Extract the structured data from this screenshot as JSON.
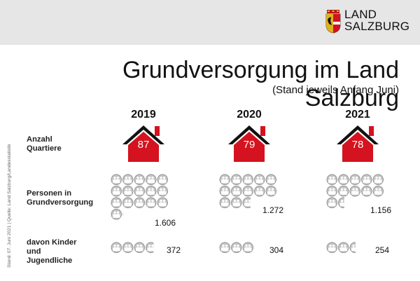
{
  "header": {
    "logo_line1": "LAND",
    "logo_line2": "SALZBURG",
    "title": "Grundversorgung im Land Salzburg",
    "subtitle": "(Stand jeweils Anfang Juni)"
  },
  "side_note": "Stand: 07. Juni 2021 | Quelle: Land Salzburg/Landesstatistik",
  "row_labels": {
    "quarters": "Anzahl Quartiere",
    "persons": "Personen in Grundversorgung",
    "children": "davon Kinder und Jugendliche"
  },
  "years": [
    {
      "year": "2019",
      "quarters": "87",
      "persons": "1.606",
      "children": "372"
    },
    {
      "year": "2020",
      "quarters": "79",
      "persons": "1.272",
      "children": "304"
    },
    {
      "year": "2021",
      "quarters": "78",
      "persons": "1.156",
      "children": "254"
    }
  ],
  "pictogram": {
    "people_per_icon": 100,
    "persons_icons": [
      16.06,
      12.72,
      11.56
    ],
    "children_icons": [
      3.72,
      3.04,
      2.54
    ]
  },
  "colors": {
    "house_red": "#d5121f",
    "house_black": "#111111",
    "icon_fill": "#c4c4c4",
    "icon_stroke": "#8a8a8a",
    "topbar": "#e6e6e6"
  }
}
